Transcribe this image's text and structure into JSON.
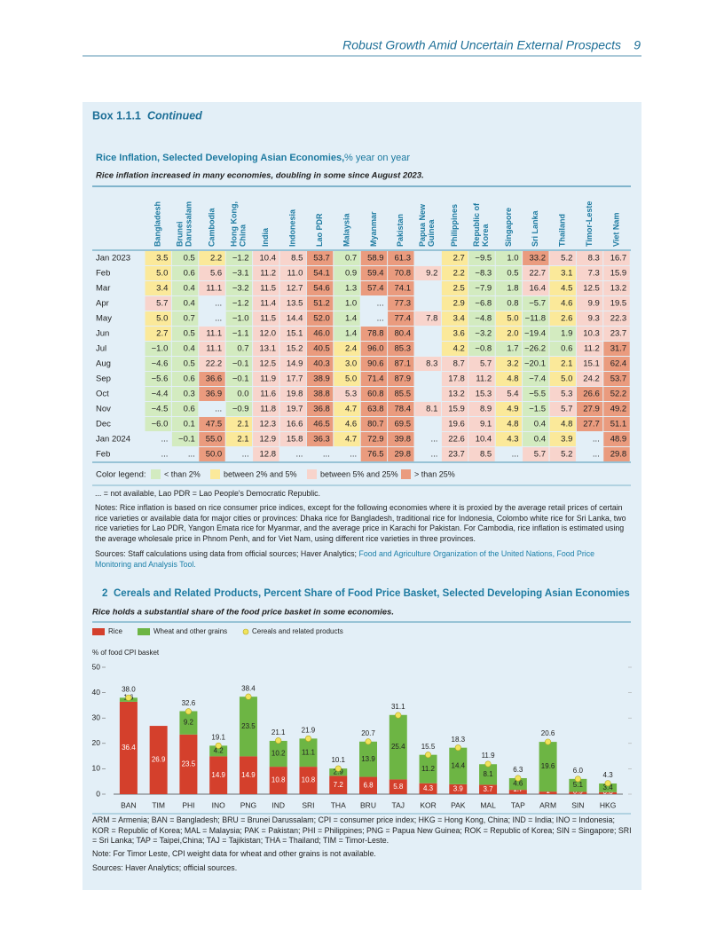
{
  "header": {
    "title": "Robust Growth Amid Uncertain External Prospects",
    "page": "9"
  },
  "box": {
    "label": "Box 1.1.1",
    "continued": "Continued"
  },
  "table": {
    "title": "Rice Inflation, Selected Developing Asian Economies,",
    "unit": "% year on year",
    "subtitle": "Rice inflation increased in many economies, doubling in some since August 2023.",
    "columns": [
      "Bangladesh",
      "Brunei Darussalam",
      "Cambodia",
      "Hong Kong, China",
      "India",
      "Indonesia",
      "Lao PDR",
      "Malaysia",
      "Myanmar",
      "Pakistan",
      "Papua New Guinea",
      "Philippines",
      "Republic of Korea",
      "Singapore",
      "Sri Lanka",
      "Thailand",
      "Timor-Leste",
      "Viet Nam"
    ],
    "row_labels": [
      "Jan 2023",
      "Feb",
      "Mar",
      "Apr",
      "May",
      "Jun",
      "Jul",
      "Aug",
      "Sep",
      "Oct",
      "Nov",
      "Dec",
      "Jan 2024",
      "Feb"
    ],
    "rows": [
      [
        "3.5",
        "0.5",
        "2.2",
        "−1.2",
        "10.4",
        "8.5",
        "53.7",
        "0.7",
        "58.9",
        "61.3",
        null,
        "2.7",
        "−9.5",
        "1.0",
        "33.2",
        "5.2",
        "8.3",
        "16.7"
      ],
      [
        "5.0",
        "0.6",
        "5.6",
        "−3.1",
        "11.2",
        "11.0",
        "54.1",
        "0.9",
        "59.4",
        "70.8",
        "9.2",
        "2.2",
        "−8.3",
        "0.5",
        "22.7",
        "3.1",
        "7.3",
        "15.9"
      ],
      [
        "3.4",
        "0.4",
        "11.1",
        "−3.2",
        "11.5",
        "12.7",
        "54.6",
        "1.3",
        "57.4",
        "74.1",
        null,
        "2.5",
        "−7.9",
        "1.8",
        "16.4",
        "4.5",
        "12.5",
        "13.2"
      ],
      [
        "5.7",
        "0.4",
        "...",
        "−1.2",
        "11.4",
        "13.5",
        "51.2",
        "1.0",
        "...",
        "77.3",
        null,
        "2.9",
        "−6.8",
        "0.8",
        "−5.7",
        "4.6",
        "9.9",
        "19.5"
      ],
      [
        "5.0",
        "0.7",
        "...",
        "−1.0",
        "11.5",
        "14.4",
        "52.0",
        "1.4",
        "...",
        "77.4",
        "7.8",
        "3.4",
        "−4.8",
        "5.0",
        "−11.8",
        "2.6",
        "9.3",
        "22.3"
      ],
      [
        "2.7",
        "0.5",
        "11.1",
        "−1.1",
        "12.0",
        "15.1",
        "46.0",
        "1.4",
        "78.8",
        "80.4",
        null,
        "3.6",
        "−3.2",
        "2.0",
        "−19.4",
        "1.9",
        "10.3",
        "23.7"
      ],
      [
        "−1.0",
        "0.4",
        "11.1",
        "0.7",
        "13.1",
        "15.2",
        "40.5",
        "2.4",
        "96.0",
        "85.3",
        null,
        "4.2",
        "−0.8",
        "1.7",
        "−26.2",
        "0.6",
        "11.2",
        "31.7"
      ],
      [
        "−4.6",
        "0.5",
        "22.2",
        "−0.1",
        "12.5",
        "14.9",
        "40.3",
        "3.0",
        "90.6",
        "87.1",
        "8.3",
        "8.7",
        "5.7",
        "3.2",
        "−20.1",
        "2.1",
        "15.1",
        "62.4"
      ],
      [
        "−5.6",
        "0.6",
        "36.6",
        "−0.1",
        "11.9",
        "17.7",
        "38.9",
        "5.0",
        "71.4",
        "87.9",
        null,
        "17.8",
        "11.2",
        "4.8",
        "−7.4",
        "5.0",
        "24.2",
        "53.7"
      ],
      [
        "−4.4",
        "0.3",
        "36.9",
        "0.0",
        "11.6",
        "19.8",
        "38.8",
        "5.3",
        "60.8",
        "85.5",
        null,
        "13.2",
        "15.3",
        "5.4",
        "−5.5",
        "5.3",
        "26.6",
        "52.2"
      ],
      [
        "−4.5",
        "0.6",
        "...",
        "−0.9",
        "11.8",
        "19.7",
        "36.8",
        "4.7",
        "63.8",
        "78.4",
        "8.1",
        "15.9",
        "8.9",
        "4.9",
        "−1.5",
        "5.7",
        "27.9",
        "49.2"
      ],
      [
        "−6.0",
        "0.1",
        "47.5",
        "2.1",
        "12.3",
        "16.6",
        "46.5",
        "4.6",
        "80.7",
        "69.5",
        null,
        "19.6",
        "9.1",
        "4.8",
        "0.4",
        "4.8",
        "27.7",
        "51.1"
      ],
      [
        "...",
        "−0.1",
        "55.0",
        "2.1",
        "12.9",
        "15.8",
        "36.3",
        "4.7",
        "72.9",
        "39.8",
        "...",
        "22.6",
        "10.4",
        "4.3",
        "0.4",
        "3.9",
        "...",
        "48.9"
      ],
      [
        "...",
        "...",
        "50.0",
        "...",
        "12.8",
        "...",
        "...",
        "...",
        "76.5",
        "29.8",
        "...",
        "23.7",
        "8.5",
        "...",
        "5.7",
        "5.2",
        "...",
        "29.8"
      ]
    ],
    "legend_title": "Color legend:",
    "legend": [
      {
        "label": "< than 2%",
        "color": "#d3ebc0"
      },
      {
        "label": "between 2% and 5%",
        "color": "#fbe99a"
      },
      {
        "label": "between 5% and 25%",
        "color": "#f8d4cc"
      },
      {
        "label": "> than 25%",
        "color": "#ea9b7e"
      }
    ],
    "thresholds": [
      2,
      5,
      25
    ],
    "notes": [
      "... = not available, Lao PDR = Lao People's Democratic Republic.",
      "Notes: Rice inflation is based on rice consumer price indices, except for the following economies where it is proxied by the average retail prices of certain rice varieties or available data for major cities or provinces: Dhaka rice for Bangladesh, traditional rice for Indonesia, Colombo white rice for Sri Lanka, two rice varieties for Lao PDR, Yangon Emata rice for Myanmar, and the average price in Karachi for Pakistan. For Cambodia, rice inflation is estimated using the average wholesale price in Phnom Penh, and for Viet Nam, using different rice varieties in three provinces."
    ],
    "sources": "Sources: Staff calculations using data from official sources; Haver Analytics;",
    "sources_link": "Food and Agriculture Organization of the United Nations, Food Price Monitoring and Analysis Tool."
  },
  "chart_data": {
    "type": "bar",
    "number": "2",
    "title": "Cereals and Related Products, Percent Share of Food Price Basket, Selected Developing Asian Economies",
    "subtitle": "Rice holds a substantial share of the food price basket in some economies.",
    "y_label": "% of food CPI basket",
    "categories": [
      "BAN",
      "TIM",
      "PHI",
      "INO",
      "PNG",
      "IND",
      "SRI",
      "THA",
      "BRU",
      "TAJ",
      "KOR",
      "PAK",
      "MAL",
      "TAP",
      "ARM",
      "SIN",
      "HKG"
    ],
    "series": [
      {
        "name": "Rice",
        "color": "#d4402c",
        "stacked": true,
        "values": [
          36.4,
          26.9,
          23.5,
          14.9,
          14.9,
          10.8,
          10.8,
          7.2,
          6.8,
          5.8,
          4.3,
          3.9,
          3.7,
          1.7,
          1.0,
          0.9,
          0.8
        ]
      },
      {
        "name": "Wheat and other grains",
        "color": "#6db544",
        "stacked": true,
        "values": [
          1.6,
          null,
          9.2,
          4.2,
          23.5,
          10.2,
          11.1,
          2.9,
          13.9,
          25.4,
          11.2,
          14.4,
          8.1,
          4.6,
          19.6,
          5.1,
          3.4
        ]
      },
      {
        "name": "Cereals and related products",
        "color": "#f0e35c",
        "marker": "dot",
        "values": [
          38.0,
          null,
          32.6,
          19.1,
          38.4,
          21.1,
          21.9,
          10.1,
          20.7,
          31.1,
          15.5,
          18.3,
          11.9,
          6.3,
          20.6,
          6.0,
          4.3
        ],
        "value_labels": [
          "38.0",
          null,
          "32.6",
          "19.1",
          "38.4",
          "21.1",
          "21.9",
          "10.1",
          "20.7",
          "31.1",
          "15.5",
          "18.3",
          "11.9",
          "6.3",
          "20.6",
          "6.0",
          "4.3"
        ]
      }
    ],
    "ylim": [
      0,
      50
    ],
    "yticks": [
      0,
      10,
      20,
      30,
      40,
      50
    ],
    "footnotes": [
      "ARM = Armenia; BAN = Bangladesh; BRU = Brunei Darussalam; CPI = consumer price index; HKG = Hong Kong, China; IND = India; INO = Indonesia; KOR = Republic of Korea; MAL = Malaysia; PAK = Pakistan; PHI = Philippines; PNG = Papua New Guinea; ROK = Republic of Korea; SIN = Singapore; SRI = Sri Lanka; TAP = Taipei,China; TAJ = Tajikistan; THA = Thailand; TIM = Timor-Leste.",
      "Note: For Timor Leste, CPI weight data for wheat and other grains is not available.",
      "Sources: Haver Analytics; official sources."
    ]
  }
}
